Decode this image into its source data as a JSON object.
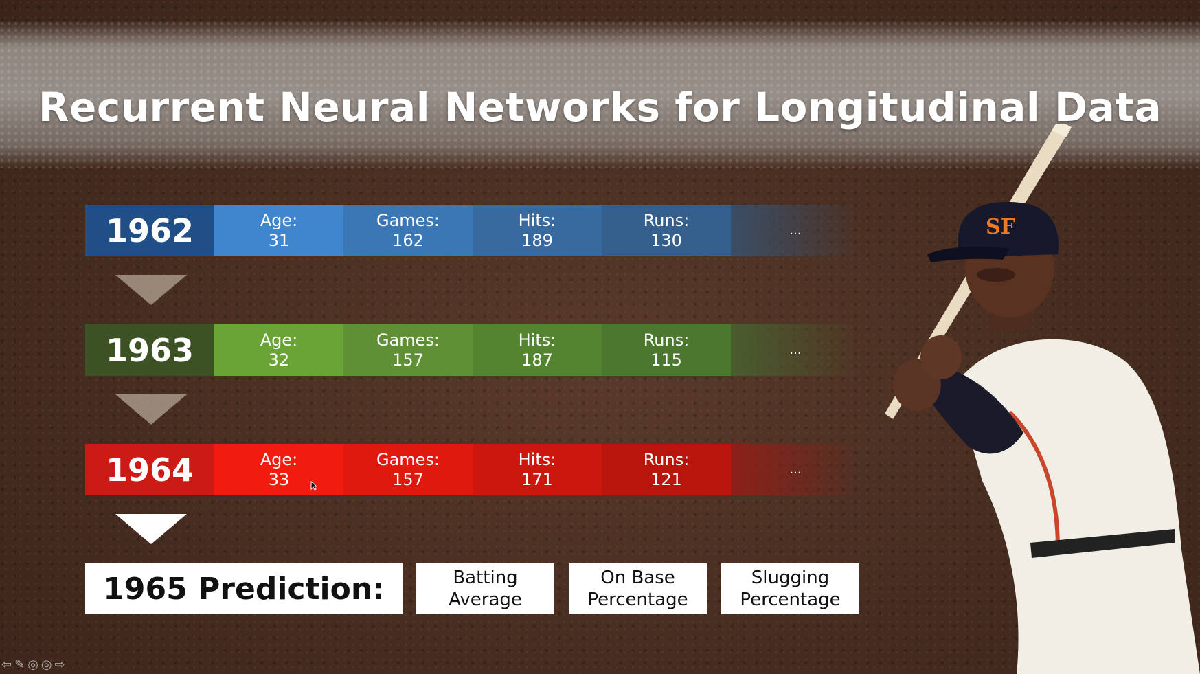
{
  "slide": {
    "title": "Recurrent Neural Networks for Longitudinal Data",
    "seasons": [
      {
        "year": "1962",
        "colors": {
          "year": "#1f4f86",
          "c1": "#3f86cf",
          "c2": "#3b77b4",
          "c3": "#386aa0",
          "c4": "#355f8c",
          "c5": "#3a4e66"
        },
        "stats": [
          {
            "label": "Age:",
            "value": "31"
          },
          {
            "label": "Games:",
            "value": "162"
          },
          {
            "label": "Hits:",
            "value": "189"
          },
          {
            "label": "Runs:",
            "value": "130"
          }
        ],
        "more": "..."
      },
      {
        "year": "1963",
        "colors": {
          "year": "#3c5225",
          "c1": "#6aa437",
          "c2": "#5f9134",
          "c3": "#558431",
          "c4": "#4c772e",
          "c5": "#485d2e"
        },
        "stats": [
          {
            "label": "Age:",
            "value": "32"
          },
          {
            "label": "Games:",
            "value": "157"
          },
          {
            "label": "Hits:",
            "value": "187"
          },
          {
            "label": "Runs:",
            "value": "115"
          }
        ],
        "more": "..."
      },
      {
        "year": "1964",
        "colors": {
          "year": "#cc1a14",
          "c1": "#f21b10",
          "c2": "#e0190f",
          "c3": "#cc170e",
          "c4": "#b8150d",
          "c5": "#8e1f18"
        },
        "stats": [
          {
            "label": "Age:",
            "value": "33"
          },
          {
            "label": "Games:",
            "value": "157"
          },
          {
            "label": "Hits:",
            "value": "171"
          },
          {
            "label": "Runs:",
            "value": "121"
          }
        ],
        "more": "..."
      }
    ],
    "prediction": {
      "title": "1965  Prediction:",
      "outputs": [
        {
          "line1": "Batting",
          "line2": "Average"
        },
        {
          "line1": "On Base",
          "line2": "Percentage"
        },
        {
          "line1": "Slugging",
          "line2": "Percentage"
        }
      ]
    },
    "nav_icons": [
      "prev-icon",
      "pen-icon",
      "menu-icon",
      "options-icon",
      "next-icon"
    ],
    "image": "baseball-player-batting"
  }
}
